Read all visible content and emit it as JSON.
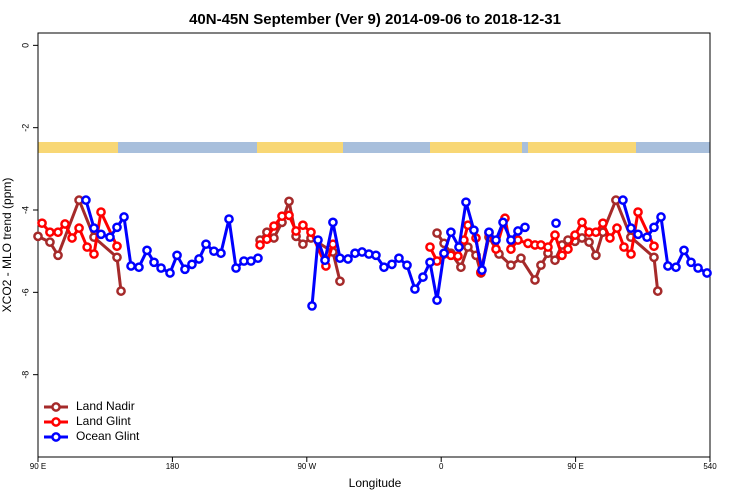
{
  "chart_data": {
    "type": "line",
    "title": "40N-45N September (Ver 9)   2014-09-06 to 2018-12-31",
    "x_label": "Longitude",
    "y_label": "XCO2 - MLO trend (ppm)",
    "xlim": [
      90,
      540
    ],
    "xticks": [
      {
        "value": 90,
        "label": "90 E"
      },
      180,
      {
        "value": 270,
        "label": "90 W"
      },
      {
        "value": 360,
        "label": "0"
      },
      {
        "value": 450,
        "label": "90 E"
      },
      540
    ],
    "ylim": [
      -10,
      0.3
    ],
    "yticks": [
      0,
      -2,
      -4,
      -6,
      -8
    ],
    "legend": "bottom-left",
    "series": [
      {
        "name": "Land Nadir",
        "color": "#a52a2a",
        "x": [
          90,
          98,
          103.4,
          117.5,
          127.5,
          142.9,
          145.6,
          null,
          238.7,
          243.3,
          248,
          253.4,
          258.1,
          262.8,
          267.4,
          272.8,
          287.5,
          292.2,
          null,
          357.2,
          361.9,
          366.5,
          373.2,
          377.9,
          383.3,
          386.6,
          392,
          398.7,
          406.7,
          413.4,
          422.8,
          426.8,
          431.5,
          436.2,
          440.9,
          444.9,
          449.6,
          454.3,
          459,
          463.6,
          468.3,
          477,
          487,
          502.5,
          505
        ],
        "values": [
          -4.64,
          -4.78,
          -5.1,
          -3.76,
          -4.66,
          -5.15,
          -5.97,
          null,
          -4.73,
          -4.54,
          -4.68,
          -4.3,
          -3.79,
          -4.64,
          -4.83,
          -4.68,
          -5.02,
          -5.73,
          null,
          -4.56,
          -4.81,
          -5.05,
          -5.39,
          -4.9,
          -5.1,
          -5.53,
          -4.66,
          -5.07,
          -5.34,
          -5.17,
          -5.7,
          -5.34,
          -5.05,
          -5.22,
          -4.85,
          -4.73,
          -4.76,
          -4.68,
          -4.78,
          -5.1,
          -4.54,
          -3.76,
          -4.66,
          -5.15,
          -5.97
        ]
      },
      {
        "name": "Land Glint",
        "color": "#ff0000",
        "x": [
          92.7,
          98,
          103.4,
          108.1,
          112.8,
          117.5,
          122.9,
          127.5,
          132.2,
          142.9,
          null,
          238.7,
          243.3,
          248,
          253.4,
          258.1,
          262.8,
          267.4,
          272.8,
          282.8,
          287.5,
          null,
          352.5,
          357.2,
          361.9,
          366.5,
          371.2,
          375.2,
          377.9,
          383.3,
          386.6,
          392,
          396.7,
          402.7,
          406.7,
          411.4,
          418.1,
          422.8,
          426.8,
          431.5,
          436.2,
          440.9,
          444.9,
          449.6,
          454.3,
          459,
          463.6,
          468.3,
          473,
          477.7,
          482.4,
          487.1,
          491.8,
          502.5
        ],
        "values": [
          -4.32,
          -4.54,
          -4.54,
          -4.34,
          -4.68,
          -4.44,
          -4.9,
          -5.07,
          -4.05,
          -4.88,
          null,
          -4.85,
          -4.71,
          -4.39,
          -4.15,
          -4.13,
          -4.51,
          -4.37,
          -4.54,
          -5.36,
          -4.83,
          null,
          -4.9,
          -5.24,
          -5.07,
          -5.1,
          -5.12,
          -4.73,
          -4.37,
          -4.68,
          -5.51,
          -4.56,
          -4.95,
          -4.2,
          -4.95,
          -4.73,
          -4.81,
          -4.85,
          -4.85,
          -4.9,
          -4.61,
          -5.1,
          -4.95,
          -4.61,
          -4.3,
          -4.54,
          -4.54,
          -4.32,
          -4.68,
          -4.44,
          -4.9,
          -5.07,
          -4.05,
          -4.88
        ]
      },
      {
        "name": "Ocean Glint",
        "color": "#0000ff",
        "x": [
          122.1,
          127.5,
          132.2,
          138.2,
          142.9,
          147.6,
          152.3,
          157.6,
          163,
          167.7,
          172.4,
          178.4,
          183.1,
          188.4,
          193.1,
          197.8,
          202.5,
          207.8,
          212.5,
          217.9,
          222.6,
          227.9,
          232.6,
          237.3,
          null,
          273.5,
          277.5,
          282.2,
          287.5,
          292.2,
          297.6,
          302.3,
          307,
          311.6,
          316.3,
          321.7,
          327,
          331.7,
          337.1,
          342.4,
          347.8,
          352.5,
          357.2,
          361.9,
          366.5,
          371.9,
          376.6,
          381.9,
          387.3,
          392,
          396.7,
          401.4,
          406.7,
          411.4,
          416.1,
          null,
          436.9,
          null,
          481.7,
          487.1,
          491.8,
          497.8,
          502.5,
          507.2,
          511.8,
          517.2,
          522.6,
          527.3,
          532,
          538
        ],
        "values": [
          -3.76,
          -4.44,
          -4.59,
          -4.66,
          -4.42,
          -4.17,
          -5.36,
          -5.39,
          -4.98,
          -5.27,
          -5.41,
          -5.53,
          -5.1,
          -5.44,
          -5.32,
          -5.19,
          -4.83,
          -5.0,
          -5.05,
          -4.22,
          -5.41,
          -5.24,
          -5.24,
          -5.17,
          null,
          -6.33,
          -4.73,
          -5.22,
          -4.3,
          -5.17,
          -5.19,
          -5.05,
          -5.02,
          -5.07,
          -5.1,
          -5.39,
          -5.32,
          -5.17,
          -5.34,
          -5.92,
          -5.63,
          -5.27,
          -6.19,
          -5.05,
          -4.54,
          -4.9,
          -3.81,
          -4.49,
          -5.46,
          -4.54,
          -4.73,
          -4.3,
          -4.73,
          -4.51,
          -4.42,
          null,
          -4.32,
          null,
          -3.76,
          -4.44,
          -4.59,
          -4.66,
          -4.42,
          -4.17,
          -5.36,
          -5.39,
          -4.98,
          -5.27,
          -5.41,
          -5.53
        ]
      }
    ]
  }
}
